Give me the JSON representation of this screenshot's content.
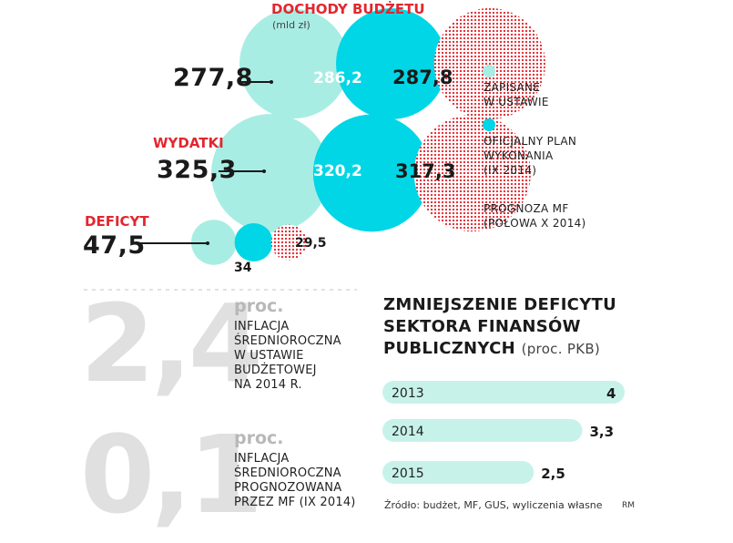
{
  "bubbles": {
    "title": "DOCHODY BUDŻETU",
    "unit": "(mld zł)",
    "series": [
      {
        "name": "ZAPISANE\nW USTAWIE",
        "color": "#a8ede4"
      },
      {
        "name": "OFICJALNY PLAN\nWYKONANIA\n(IX 2014)",
        "color": "#00d6e6"
      },
      {
        "name": "PROGNOZA MF\n(POŁOWA X 2014)",
        "color": "#e3262e"
      }
    ],
    "groups": [
      {
        "label": "DOCHODY BUDŻETU",
        "values": [
          277.8,
          286.2,
          287.8
        ],
        "value_labels": [
          "277,8",
          "286,2",
          "287,8"
        ]
      },
      {
        "label": "WYDATKI",
        "values": [
          325.3,
          320.2,
          317.3
        ],
        "value_labels": [
          "325,3",
          "320,2",
          "317,3"
        ]
      },
      {
        "label": "DEFICYT",
        "values": [
          47.5,
          34,
          29.5
        ],
        "value_labels": [
          "47,5",
          "34",
          "29,5"
        ]
      }
    ]
  },
  "stats": [
    {
      "value": "2,4",
      "unit": "proc.",
      "description": "INFLACJA\nŚREDNIOROCZNA\nW USTAWIE\nBUDŻETOWEJ\nNA 2014 R."
    },
    {
      "value": "0,1",
      "unit": "proc.",
      "description": "INFLACJA\nŚREDNIOROCZNA\nPROGNOZOWANA\nPRZEZ MF (IX 2014)"
    }
  ],
  "deficit_reduction": {
    "title_lines": [
      "ZMNIEJSZENIE DEFICYTU",
      "SEKTORA FINANSÓW",
      "PUBLICZNYCH"
    ],
    "unit": "(proc. PKB)",
    "bar_color": "#c7f2ea"
  },
  "chart_data": [
    {
      "type": "bubble",
      "title": "DOCHODY BUDŻETU",
      "subtitle": "(mld zł)",
      "categories": [
        "DOCHODY BUDŻETU",
        "WYDATKI",
        "DEFICYT"
      ],
      "series": [
        {
          "name": "ZAPISANE W USTAWIE",
          "values": [
            277.8,
            325.3,
            47.5
          ]
        },
        {
          "name": "OFICJALNY PLAN WYKONANIA (IX 2014)",
          "values": [
            286.2,
            320.2,
            34
          ]
        },
        {
          "name": "PROGNOZA MF (POŁOWA X 2014)",
          "values": [
            287.8,
            317.3,
            29.5
          ]
        }
      ],
      "legend": "right"
    },
    {
      "type": "bar",
      "orientation": "horizontal",
      "title": "ZMNIEJSZENIE DEFICYTU SEKTORA FINANSÓW PUBLICZNYCH (proc. PKB)",
      "categories": [
        "2013",
        "2014",
        "2015"
      ],
      "values": [
        4,
        3.3,
        2.5
      ],
      "value_labels": [
        "4",
        "3,3",
        "2,5"
      ]
    }
  ],
  "footer": {
    "source": "Źródło: budżet, MF, GUS, wyliczenia własne",
    "credit": "RM"
  }
}
